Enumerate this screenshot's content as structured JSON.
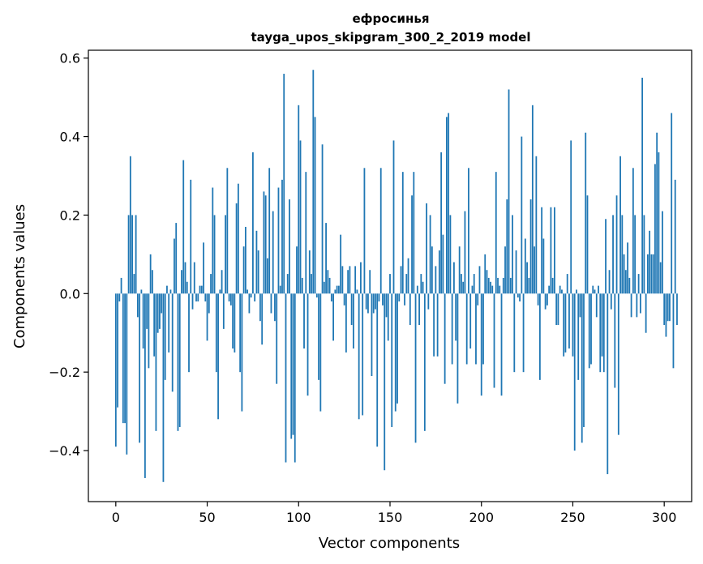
{
  "chart_data": {
    "type": "bar",
    "title": "ефросинья",
    "subtitle": "tayga_upos_skipgram_300_2_2019 model",
    "xlabel": "Vector components",
    "ylabel": "Components values",
    "xlim": [
      -15,
      315
    ],
    "ylim": [
      -0.53,
      0.62
    ],
    "x_ticks": [
      0,
      50,
      100,
      150,
      200,
      250,
      300
    ],
    "y_ticks": [
      -0.4,
      -0.2,
      0.0,
      0.2,
      0.4,
      0.6
    ],
    "y_tick_labels": [
      "−0.4",
      "−0.2",
      "0.0",
      "0.2",
      "0.4",
      "0.6"
    ],
    "bar_color": "#1f77b4",
    "grid": false,
    "legend": "none",
    "values": [
      -0.39,
      -0.29,
      -0.02,
      0.04,
      -0.33,
      -0.33,
      -0.41,
      0.2,
      0.35,
      0.2,
      0.05,
      0.2,
      -0.06,
      -0.38,
      0.01,
      -0.14,
      -0.47,
      -0.09,
      -0.19,
      0.1,
      0.06,
      -0.16,
      -0.35,
      -0.1,
      -0.09,
      -0.05,
      -0.48,
      -0.22,
      0.02,
      -0.15,
      0.01,
      -0.25,
      0.14,
      0.18,
      -0.35,
      -0.34,
      0.06,
      0.34,
      0.08,
      0.03,
      -0.2,
      0.29,
      -0.04,
      0.08,
      -0.02,
      -0.02,
      0.02,
      0.02,
      0.13,
      -0.02,
      -0.12,
      -0.05,
      0.05,
      0.27,
      0.2,
      -0.2,
      -0.32,
      0.01,
      0.06,
      -0.09,
      0.2,
      0.32,
      -0.02,
      -0.03,
      -0.14,
      -0.15,
      0.23,
      0.28,
      -0.2,
      -0.3,
      0.12,
      0.17,
      0.01,
      -0.05,
      -0.01,
      0.36,
      -0.02,
      0.16,
      0.11,
      -0.07,
      -0.13,
      0.26,
      0.25,
      0.09,
      0.32,
      -0.05,
      0.21,
      -0.07,
      -0.23,
      0.27,
      0.02,
      0.29,
      0.56,
      -0.43,
      0.05,
      0.24,
      -0.37,
      -0.36,
      -0.43,
      0.12,
      0.48,
      0.39,
      0.04,
      -0.14,
      0.31,
      -0.26,
      0.11,
      0.05,
      0.57,
      0.45,
      -0.01,
      -0.22,
      -0.3,
      0.38,
      0.03,
      0.18,
      0.06,
      0.04,
      -0.02,
      -0.12,
      0.01,
      0.02,
      0.02,
      0.15,
      0.07,
      -0.03,
      -0.15,
      0.06,
      0.07,
      -0.08,
      -0.14,
      0.07,
      0.01,
      -0.32,
      0.08,
      -0.31,
      0.32,
      -0.04,
      -0.05,
      0.06,
      -0.21,
      -0.05,
      -0.04,
      -0.39,
      -0.02,
      0.32,
      -0.03,
      -0.45,
      -0.06,
      -0.12,
      0.05,
      -0.34,
      0.39,
      -0.3,
      -0.28,
      -0.02,
      0.07,
      0.31,
      -0.03,
      0.05,
      0.09,
      -0.08,
      0.25,
      0.31,
      -0.38,
      0.02,
      -0.08,
      0.05,
      0.03,
      -0.35,
      0.23,
      -0.04,
      0.2,
      0.12,
      -0.16,
      0.07,
      -0.16,
      0.11,
      0.36,
      0.15,
      -0.23,
      0.45,
      0.46,
      0.2,
      -0.18,
      0.08,
      -0.12,
      -0.28,
      0.12,
      0.05,
      0.03,
      0.21,
      -0.18,
      0.32,
      -0.14,
      0.02,
      0.05,
      -0.18,
      -0.03,
      0.07,
      -0.26,
      -0.18,
      0.1,
      0.06,
      0.04,
      0.03,
      0.02,
      -0.24,
      0.31,
      0.04,
      0.02,
      -0.26,
      0.04,
      0.12,
      0.24,
      0.52,
      0.04,
      0.2,
      -0.2,
      0.11,
      -0.01,
      -0.02,
      0.4,
      -0.2,
      0.14,
      0.08,
      0.04,
      0.24,
      0.48,
      0.12,
      0.35,
      -0.03,
      -0.22,
      0.22,
      0.14,
      -0.04,
      -0.03,
      0.02,
      0.22,
      0.04,
      0.22,
      -0.08,
      -0.08,
      0.02,
      0.01,
      -0.16,
      -0.15,
      0.05,
      -0.14,
      0.39,
      -0.16,
      -0.4,
      0.01,
      -0.22,
      -0.06,
      -0.38,
      -0.34,
      0.41,
      0.25,
      -0.19,
      -0.18,
      0.02,
      0.01,
      -0.06,
      0.02,
      -0.2,
      -0.16,
      -0.2,
      0.19,
      -0.46,
      0.06,
      -0.04,
      0.2,
      -0.24,
      0.25,
      -0.36,
      0.35,
      0.2,
      0.1,
      0.06,
      0.13,
      0.04,
      -0.06,
      0.32,
      0.2,
      -0.06,
      0.05,
      -0.05,
      0.55,
      0.2,
      -0.1,
      0.1,
      0.16,
      0.1,
      0.1,
      0.33,
      0.41,
      0.36,
      0.08,
      0.21,
      -0.08,
      -0.11,
      -0.07,
      -0.07,
      0.46,
      -0.19,
      0.29,
      -0.08
    ]
  }
}
